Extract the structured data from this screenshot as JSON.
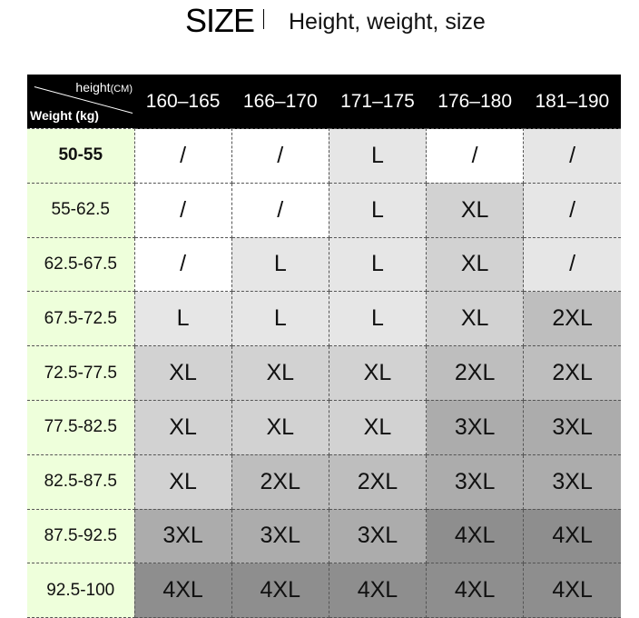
{
  "title": {
    "main": "SIZE",
    "subtitle": "Height, weight, size"
  },
  "corner": {
    "height_label": "height",
    "height_unit": "(CM)",
    "weight_label": "Weight (kg)"
  },
  "heights": [
    "160–165",
    "166–170",
    "171–175",
    "176–180",
    "181–190"
  ],
  "rows": [
    {
      "weight": "50-55",
      "sizes": [
        "/",
        "/",
        "L",
        "/",
        "/"
      ]
    },
    {
      "weight": "55-62.5",
      "sizes": [
        "/",
        "/",
        "L",
        "XL",
        "/"
      ]
    },
    {
      "weight": "62.5-67.5",
      "sizes": [
        "/",
        "L",
        "L",
        "XL",
        "/"
      ]
    },
    {
      "weight": "67.5-72.5",
      "sizes": [
        "L",
        "L",
        "L",
        "XL",
        "2XL"
      ]
    },
    {
      "weight": "72.5-77.5",
      "sizes": [
        "XL",
        "XL",
        "XL",
        "2XL",
        "2XL"
      ]
    },
    {
      "weight": "77.5-82.5",
      "sizes": [
        "XL",
        "XL",
        "XL",
        "3XL",
        "3XL"
      ]
    },
    {
      "weight": "82.5-87.5",
      "sizes": [
        "XL",
        "2XL",
        "2XL",
        "3XL",
        "3XL"
      ]
    },
    {
      "weight": "87.5-92.5",
      "sizes": [
        "3XL",
        "3XL",
        "3XL",
        "4XL",
        "4XL"
      ]
    },
    {
      "weight": "92.5-100",
      "sizes": [
        "4XL",
        "4XL",
        "4XL",
        "4XL",
        "4XL"
      ]
    }
  ],
  "size_colors": {
    "/": "#ffffff",
    "L": "#e6e6e6",
    "XL": "#d2d2d2",
    "2XL": "#bebebe",
    "3XL": "#acacac",
    "4XL": "#8e8e8e"
  },
  "weight_column_color": "#eeffdb"
}
